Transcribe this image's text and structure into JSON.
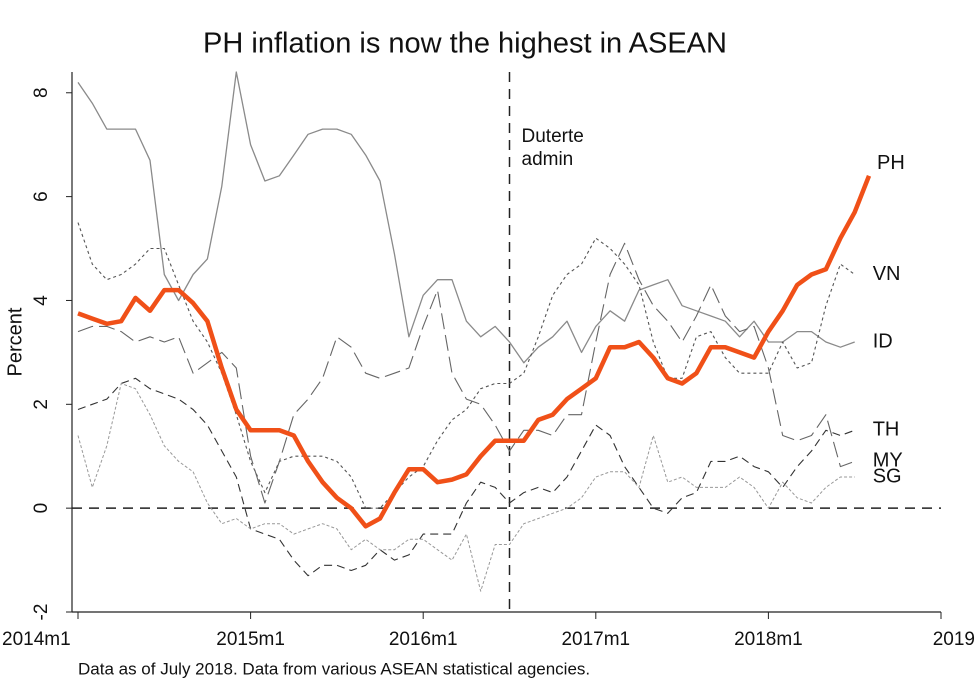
{
  "chart_data": {
    "type": "line",
    "title": "PH inflation is now the highest in ASEAN",
    "ylabel": "Percent",
    "note": "Data as of July 2018. Data from various ASEAN statistical agencies.",
    "annotation": {
      "lines": [
        "Duterte",
        "admin"
      ],
      "x": 2016.5
    },
    "hline": 0,
    "xlim": [
      2014,
      2019
    ],
    "ylim": [
      -2,
      8.4
    ],
    "xticks": [
      {
        "value": 2014,
        "label": "2014m1"
      },
      {
        "value": 2015,
        "label": "2015m1"
      },
      {
        "value": 2016,
        "label": "2016m1"
      },
      {
        "value": 2017,
        "label": "2017m1"
      },
      {
        "value": 2018,
        "label": "2018m1"
      },
      2019
    ],
    "yticks": [
      -2,
      0,
      2,
      4,
      6,
      8
    ],
    "x": [
      2014,
      2014.083,
      2014.167,
      2014.25,
      2014.333,
      2014.417,
      2014.5,
      2014.583,
      2014.667,
      2014.75,
      2014.833,
      2014.917,
      2015,
      2015.083,
      2015.167,
      2015.25,
      2015.333,
      2015.417,
      2015.5,
      2015.583,
      2015.667,
      2015.75,
      2015.833,
      2015.917,
      2016,
      2016.083,
      2016.167,
      2016.25,
      2016.333,
      2016.417,
      2016.5,
      2016.583,
      2016.667,
      2016.75,
      2016.833,
      2016.917,
      2017,
      2017.083,
      2017.167,
      2017.25,
      2017.333,
      2017.417,
      2017.5,
      2017.583,
      2017.667,
      2017.75,
      2017.833,
      2017.917,
      2018,
      2018.083,
      2018.167,
      2018.25,
      2018.333,
      2018.417,
      2018.5,
      2018.583
    ],
    "series": [
      {
        "name": "ID",
        "color": "#8a8a8a",
        "width": 1.3,
        "dash": "none",
        "label_color": "#8a8a8a",
        "values": [
          8.2,
          7.8,
          7.3,
          7.3,
          7.3,
          6.7,
          4.5,
          4.0,
          4.5,
          4.8,
          6.2,
          8.4,
          7.0,
          6.3,
          6.4,
          6.8,
          7.2,
          7.3,
          7.3,
          7.2,
          6.8,
          6.3,
          4.9,
          3.3,
          4.1,
          4.4,
          4.4,
          3.6,
          3.3,
          3.5,
          3.2,
          2.8,
          3.1,
          3.3,
          3.6,
          3.0,
          3.5,
          3.8,
          3.6,
          4.2,
          4.3,
          4.4,
          3.9,
          3.8,
          3.7,
          3.6,
          3.3,
          3.6,
          3.2,
          3.2,
          3.4,
          3.4,
          3.2,
          3.1,
          3.2,
          null
        ]
      },
      {
        "name": "VN",
        "color": "#555555",
        "width": 1.1,
        "dash": "3,3",
        "label_color": "#555555",
        "values": [
          5.5,
          4.7,
          4.4,
          4.5,
          4.7,
          5.0,
          5.0,
          4.3,
          3.6,
          3.2,
          2.6,
          1.8,
          0.9,
          0.3,
          0.9,
          1.0,
          1.0,
          1.0,
          0.9,
          0.6,
          0.0,
          0.0,
          0.3,
          0.6,
          0.8,
          1.3,
          1.7,
          1.9,
          2.3,
          2.4,
          2.4,
          2.6,
          3.3,
          4.1,
          4.5,
          4.7,
          5.2,
          5.0,
          4.7,
          4.3,
          3.2,
          2.5,
          2.5,
          3.3,
          3.4,
          2.9,
          2.6,
          2.6,
          2.6,
          3.2,
          2.7,
          2.8,
          3.9,
          4.7,
          4.5,
          null
        ]
      },
      {
        "name": "TH",
        "color": "#333333",
        "width": 1.1,
        "dash": "8,5",
        "label_color": "#333333",
        "values": [
          1.9,
          2.0,
          2.1,
          2.4,
          2.5,
          2.3,
          2.2,
          2.1,
          1.9,
          1.6,
          1.1,
          0.6,
          -0.4,
          -0.5,
          -0.6,
          -1.0,
          -1.3,
          -1.1,
          -1.1,
          -1.2,
          -1.1,
          -0.8,
          -1.0,
          -0.9,
          -0.5,
          -0.5,
          -0.5,
          0.1,
          0.5,
          0.4,
          0.1,
          0.3,
          0.4,
          0.3,
          0.6,
          1.1,
          1.6,
          1.4,
          0.8,
          0.4,
          0.0,
          -0.1,
          0.2,
          0.3,
          0.9,
          0.9,
          1.0,
          0.8,
          0.7,
          0.4,
          0.8,
          1.1,
          1.5,
          1.4,
          1.5,
          null
        ]
      },
      {
        "name": "MY",
        "color": "#666666",
        "width": 1.1,
        "dash": "16,6",
        "label_color": "#666666",
        "values": [
          3.4,
          3.5,
          3.5,
          3.4,
          3.2,
          3.3,
          3.2,
          3.3,
          2.6,
          2.8,
          3.0,
          2.7,
          1.0,
          0.1,
          0.9,
          1.8,
          2.1,
          2.5,
          3.3,
          3.1,
          2.6,
          2.5,
          2.6,
          2.7,
          3.5,
          4.2,
          2.6,
          2.1,
          2.0,
          1.6,
          1.1,
          1.5,
          1.5,
          1.4,
          1.8,
          1.8,
          3.2,
          4.5,
          5.1,
          4.4,
          3.9,
          3.6,
          3.2,
          3.7,
          4.3,
          3.7,
          3.4,
          3.5,
          2.7,
          1.4,
          1.3,
          1.4,
          1.8,
          0.8,
          0.9,
          null
        ]
      },
      {
        "name": "SG",
        "color": "#999999",
        "width": 1.0,
        "dash": "3,2",
        "label_color": "#999999",
        "values": [
          1.4,
          0.4,
          1.2,
          2.4,
          2.3,
          1.8,
          1.2,
          0.9,
          0.7,
          0.1,
          -0.3,
          -0.2,
          -0.4,
          -0.3,
          -0.3,
          -0.5,
          -0.4,
          -0.3,
          -0.4,
          -0.8,
          -0.6,
          -0.8,
          -0.8,
          -0.6,
          -0.6,
          -0.8,
          -1.0,
          -0.5,
          -1.6,
          -0.7,
          -0.7,
          -0.3,
          -0.2,
          -0.1,
          0.0,
          0.2,
          0.6,
          0.7,
          0.7,
          0.4,
          1.4,
          0.5,
          0.6,
          0.4,
          0.4,
          0.4,
          0.6,
          0.4,
          0.0,
          0.5,
          0.2,
          0.1,
          0.4,
          0.6,
          0.6,
          null
        ]
      },
      {
        "name": "PH",
        "color": "#f05018",
        "width": 4.5,
        "dash": "none",
        "label_color": "#f05018",
        "values": [
          3.75,
          3.65,
          3.55,
          3.6,
          4.05,
          3.8,
          4.2,
          4.2,
          3.95,
          3.6,
          2.7,
          1.9,
          1.5,
          1.5,
          1.5,
          1.4,
          0.9,
          0.5,
          0.2,
          0.0,
          -0.35,
          -0.2,
          0.3,
          0.75,
          0.75,
          0.5,
          0.55,
          0.65,
          1.0,
          1.3,
          1.3,
          1.3,
          1.7,
          1.8,
          2.1,
          2.3,
          2.5,
          3.1,
          3.1,
          3.2,
          2.9,
          2.5,
          2.4,
          2.6,
          3.1,
          3.1,
          3.0,
          2.9,
          3.4,
          3.8,
          4.3,
          4.5,
          4.6,
          5.2,
          5.7,
          6.4
        ]
      }
    ]
  }
}
